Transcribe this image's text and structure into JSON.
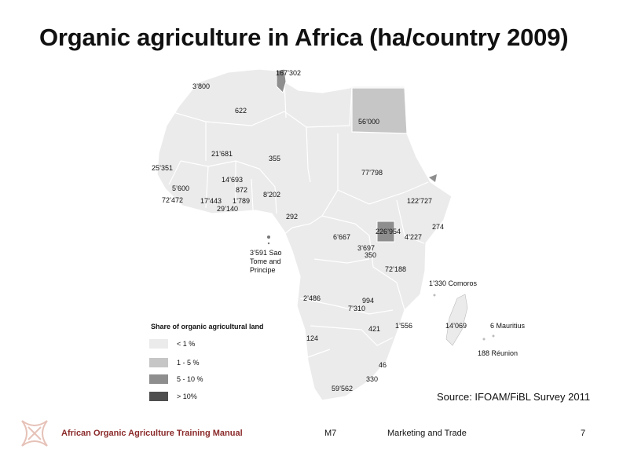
{
  "title": "Organic agriculture in Africa (ha/country 2009)",
  "map_labels": {
    "tunisia": "167’302",
    "morocco": "3’800",
    "algeria": "622",
    "egypt": "56’000",
    "mali": "21’681",
    "niger": "355",
    "senegal": "25’351",
    "burkina_faso": "14’693",
    "guinea": "5’600",
    "ghana": "872",
    "togo": "1’789",
    "sierra_leone": "72’472",
    "cote_divoire": "17’443",
    "benin": "29’140",
    "nigeria": "8’202",
    "cameroon": "292",
    "sudan": "77’798",
    "ethiopia": "122’727",
    "somalia": "274",
    "uganda": "226’954",
    "kenya": "4’227",
    "drc": "6’667",
    "rwanda": "3’697",
    "burundi": "350",
    "tanzania": "72’188",
    "sao_tome": "3’591 Sao Tome and Principe",
    "comoros": "1’330 Comoros",
    "namibia": "2’486",
    "zambia": "7’310",
    "malawi": "994",
    "mozambique": "1’556",
    "madagascar": "14’069",
    "mauritius": "6 Mauritius",
    "reunion": "188 Réunion",
    "zimbabwe": "421",
    "botswana_sa": "124",
    "swaziland": "46",
    "lesotho": "330",
    "south_africa": "59’562"
  },
  "legend": {
    "title": "Share of organic agricultural land",
    "items": [
      {
        "label": "< 1 %",
        "color": "#ebebeb"
      },
      {
        "label": "1 - 5 %",
        "color": "#c6c6c6"
      },
      {
        "label": "5 - 10 %",
        "color": "#8e8e8e"
      },
      {
        "label": "> 10%",
        "color": "#4e4e4e"
      }
    ]
  },
  "source": "Source: IFOAM/FiBL Survey 2011",
  "footer": {
    "manual": "African Organic Agriculture Training Manual",
    "module": "M7",
    "topic": "Marketing and Trade",
    "page": "7"
  },
  "colors": {
    "land_default": "#ebebeb",
    "land_mid": "#c6c6c6",
    "land_high": "#8e8e8e",
    "footer_accent": "#8b2a2a"
  }
}
